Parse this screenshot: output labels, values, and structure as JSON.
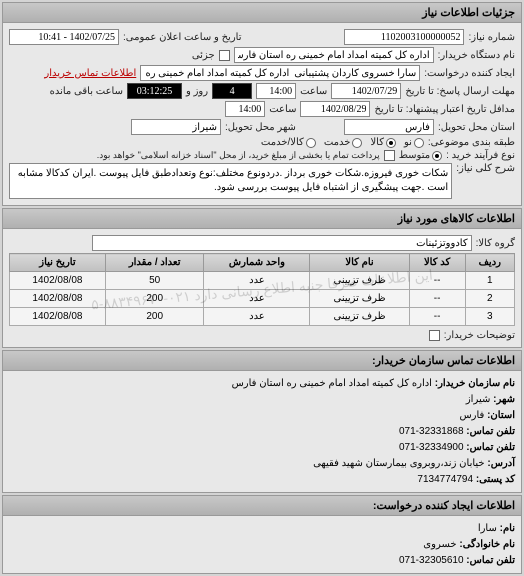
{
  "header": {
    "title": "جزئیات اطلاعات نیاز"
  },
  "info": {
    "number_label": "شماره نیاز:",
    "number_value": "1102003100000052",
    "datetime_label": "تاریخ و ساعت اعلان عمومی:",
    "datetime_value": "1402/07/25 - 10:41",
    "buyer_label": "نام دستگاه خریدار:",
    "buyer_value": "اداره کل کمیته امداد امام خمینی ره استان فارس",
    "partial_label": "جزئی",
    "creator_label": "ایجاد کننده درخواست:",
    "creator_value": "سارا خسروی کاردان پشتیبانی  اداره کل کمیته امداد امام خمینی ره استان ف",
    "contact_link": "اطلاعات تماس خریدار",
    "deadline_label": "مهلت ارسال پاسخ: تا تاریخ",
    "deadline_date": "1402/07/29",
    "time_label": "ساعت",
    "deadline_time": "14:00",
    "days_left": "4",
    "days_label": "روز و",
    "remain_time": "03:12:25",
    "remain_label": "ساعت باقی مانده",
    "validity_label": "مدافل تاریخ اعتبار پیشنهاد: تا تاریخ",
    "validity_date": "1402/08/29",
    "validity_time": "14:00",
    "province_label": "استان محل تحویل:",
    "province_value": "فارس",
    "city_label": "شهر محل تحویل:",
    "city_value": "شیراز",
    "condition_label": "طبقه بندی موضوعی:",
    "cond_new": "نو",
    "cond_used": "کالا",
    "cond_service": "خدمت",
    "cond_mixed": "کالا/خدمت",
    "process_label": "نوع فرآیند خرید :",
    "proc_small": "متوسط",
    "process_note": "پرداخت تمام یا بخشی از مبلغ خرید، از محل \"اسناد خزانه اسلامی\" خواهد بود.",
    "desc_label": "شرح کلی نیاز:",
    "desc_text": "شکات خوری فیروزه.شکات خوری برداز .دردونوع مختلف:نوع وتعدادطبق فایل پیوست .ایران کدکالا مشابه است .جهت پیشگیری از اشتباه فایل پیوست بررسی شود."
  },
  "goods": {
    "title": "اطلاعات کالاهای مورد نیاز",
    "group_label": "گروه کالا:",
    "group_value": "کادووتزئینات",
    "columns": [
      "ردیف",
      "کد کالا",
      "نام کالا",
      "واحد شمارش",
      "تعداد / مقدار",
      "تاریخ نیاز"
    ],
    "rows": [
      [
        "1",
        "--",
        "ظرف تزیینی",
        "عدد",
        "50",
        "1402/08/08"
      ],
      [
        "2",
        "--",
        "ظرف تزیینی",
        "عدد",
        "200",
        "1402/08/08"
      ],
      [
        "3",
        "--",
        "ظرف تزیینی",
        "عدد",
        "200",
        "1402/08/08"
      ]
    ],
    "watermark": "این اطلاعات صرفا جنبه اطلاع رسانی دارد ۰۲۱-۸۸۳۴۹۶۷۰-۵",
    "buyer_notes_label": "توضیحات خریدار:"
  },
  "contact1": {
    "title": "اطلاعات تماس سازمان خریدار:",
    "org_label": "نام سازمان خریدار:",
    "org_value": "اداره کل کمیته امداد امام خمینی ره استان فارس",
    "city_label": "شهر:",
    "city_value": "شیراز",
    "province_label": "استان:",
    "province_value": "فارس",
    "phone_label": "تلفن تماس:",
    "phone_value": "32331868-071",
    "fax_label": "تلفن تماس:",
    "fax_value": "32334900-071",
    "address_label": "آدرس:",
    "address_value": "خیابان زند،روبروی بیمارستان شهید فقیهی",
    "postal_label": "کد پستی:",
    "postal_value": "7134774794"
  },
  "contact2": {
    "title": "اطلاعات ایجاد کننده درخواست:",
    "name_label": "نام:",
    "name_value": "سارا",
    "family_label": "نام خانوادگی:",
    "family_value": "خسروی",
    "phone_label": "تلفن تماس:",
    "phone_value": "32305610-071"
  }
}
